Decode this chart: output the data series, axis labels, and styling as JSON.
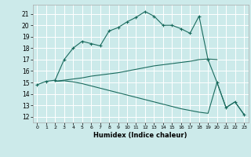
{
  "title": "",
  "xlabel": "Humidex (Indice chaleur)",
  "ylabel": "",
  "bg_color": "#cceaea",
  "grid_color": "#ffffff",
  "line_color": "#1a6b5e",
  "xlim": [
    -0.5,
    23.5
  ],
  "ylim": [
    11.5,
    21.8
  ],
  "yticks": [
    12,
    13,
    14,
    15,
    16,
    17,
    18,
    19,
    20,
    21
  ],
  "xticks": [
    0,
    1,
    2,
    3,
    4,
    5,
    6,
    7,
    8,
    9,
    10,
    11,
    12,
    13,
    14,
    15,
    16,
    17,
    18,
    19,
    20,
    21,
    22,
    23
  ],
  "line1_x": [
    0,
    1,
    2,
    3,
    4,
    5,
    6,
    7,
    8,
    9,
    10,
    11,
    12,
    13,
    14,
    15,
    16,
    17,
    18,
    19,
    20,
    21,
    22,
    23
  ],
  "line1_y": [
    14.8,
    15.1,
    15.2,
    17.0,
    18.0,
    18.6,
    18.4,
    18.2,
    19.5,
    19.8,
    20.3,
    20.7,
    21.2,
    20.8,
    20.0,
    20.0,
    19.7,
    19.3,
    20.8,
    17.0,
    15.0,
    12.8,
    13.3,
    12.2
  ],
  "line2_x": [
    2,
    3,
    4,
    5,
    6,
    7,
    8,
    9,
    10,
    11,
    12,
    13,
    14,
    15,
    16,
    17,
    18,
    19,
    20
  ],
  "line2_y": [
    15.1,
    15.2,
    15.3,
    15.4,
    15.55,
    15.65,
    15.75,
    15.85,
    16.0,
    16.15,
    16.3,
    16.45,
    16.55,
    16.65,
    16.75,
    16.85,
    17.0,
    17.05,
    17.0
  ],
  "line3_x": [
    2,
    3,
    4,
    5,
    6,
    7,
    8,
    9,
    10,
    11,
    12,
    13,
    14,
    15,
    16,
    17,
    18,
    19,
    20,
    21,
    22,
    23
  ],
  "line3_y": [
    15.1,
    15.15,
    15.05,
    14.9,
    14.7,
    14.5,
    14.3,
    14.1,
    13.9,
    13.7,
    13.5,
    13.3,
    13.1,
    12.9,
    12.7,
    12.55,
    12.4,
    12.3,
    15.0,
    12.8,
    13.3,
    12.2
  ]
}
